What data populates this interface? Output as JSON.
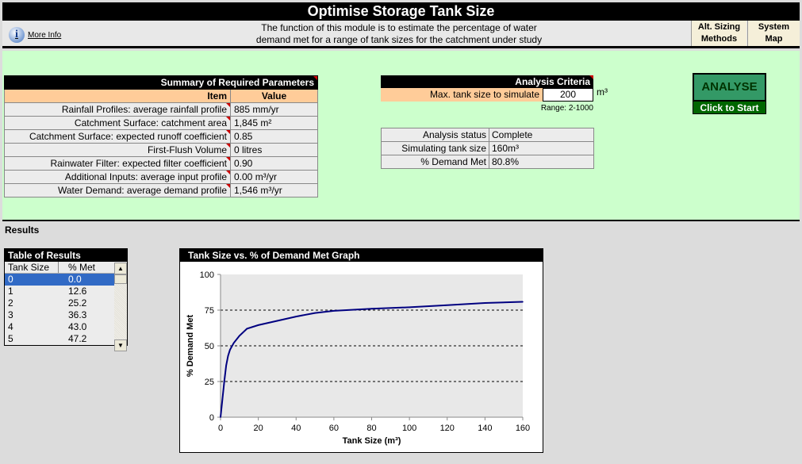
{
  "header": {
    "title": "Optimise Storage Tank Size",
    "description_line1": "The function of this module is to estimate the percentage of water",
    "description_line2": "demand met for a range of tank sizes for the catchment under study",
    "more_info": "More Info",
    "alt_sizing_1": "Alt. Sizing",
    "alt_sizing_2": "Methods",
    "system_map_1": "System",
    "system_map_2": "Map"
  },
  "summary": {
    "title": "Summary of Required Parameters",
    "col_item": "Item",
    "col_value": "Value",
    "rows": [
      {
        "item": "Rainfall Profiles: average rainfall profile",
        "value": "885 mm/yr"
      },
      {
        "item": "Catchment Surface: catchment area",
        "value": "1,845 m²"
      },
      {
        "item": "Catchment Surface: expected runoff coefficient",
        "value": "0.85"
      },
      {
        "item": "First-Flush Volume",
        "value": "0 litres"
      },
      {
        "item": "Rainwater Filter: expected filter coefficient",
        "value": "0.90"
      },
      {
        "item": "Additional Inputs: average input profile",
        "value": "0.00 m³/yr"
      },
      {
        "item": "Water Demand: average demand profile",
        "value": "1,546 m³/yr"
      }
    ]
  },
  "criteria": {
    "title": "Analysis Criteria",
    "label": "Max. tank size to simulate",
    "value": "200",
    "unit": "m³",
    "range": "Range: 2-1000"
  },
  "status": {
    "rows": [
      {
        "label": "Analysis status",
        "value": "Complete"
      },
      {
        "label": "Simulating tank size",
        "value": "160m³"
      },
      {
        "label": "% Demand Met",
        "value": "80.8%"
      }
    ]
  },
  "analyse": {
    "label": "ANALYSE",
    "sub": "Click to Start"
  },
  "results": {
    "label": "Results",
    "table_title": "Table of Results",
    "col1": "Tank Size",
    "col2": "% Met",
    "rows": [
      [
        "0",
        "0.0"
      ],
      [
        "1",
        "12.6"
      ],
      [
        "2",
        "25.2"
      ],
      [
        "3",
        "36.3"
      ],
      [
        "4",
        "43.0"
      ],
      [
        "5",
        "47.2"
      ]
    ]
  },
  "chart_data": {
    "type": "line",
    "title": "Tank Size vs. % of Demand Met Graph",
    "xlabel": "Tank Size (m³)",
    "ylabel": "% Demand Met",
    "xlim": [
      0,
      160
    ],
    "ylim": [
      0,
      100
    ],
    "xticks": [
      0,
      20,
      40,
      60,
      80,
      100,
      120,
      140,
      160
    ],
    "yticks": [
      0,
      25,
      50,
      75,
      100
    ],
    "grid": "horizontal dashed",
    "x": [
      0,
      1,
      2,
      3,
      4,
      5,
      7,
      10,
      14,
      20,
      30,
      40,
      50,
      60,
      80,
      100,
      120,
      140,
      160
    ],
    "y": [
      0,
      12.6,
      25.2,
      36.3,
      43.0,
      47.2,
      52,
      57,
      62,
      64.5,
      67.5,
      70.5,
      73,
      74.5,
      76,
      77,
      78.5,
      80,
      80.8
    ],
    "colors": {
      "line": "#000080",
      "plot_bg": "#e8e8e8"
    }
  }
}
